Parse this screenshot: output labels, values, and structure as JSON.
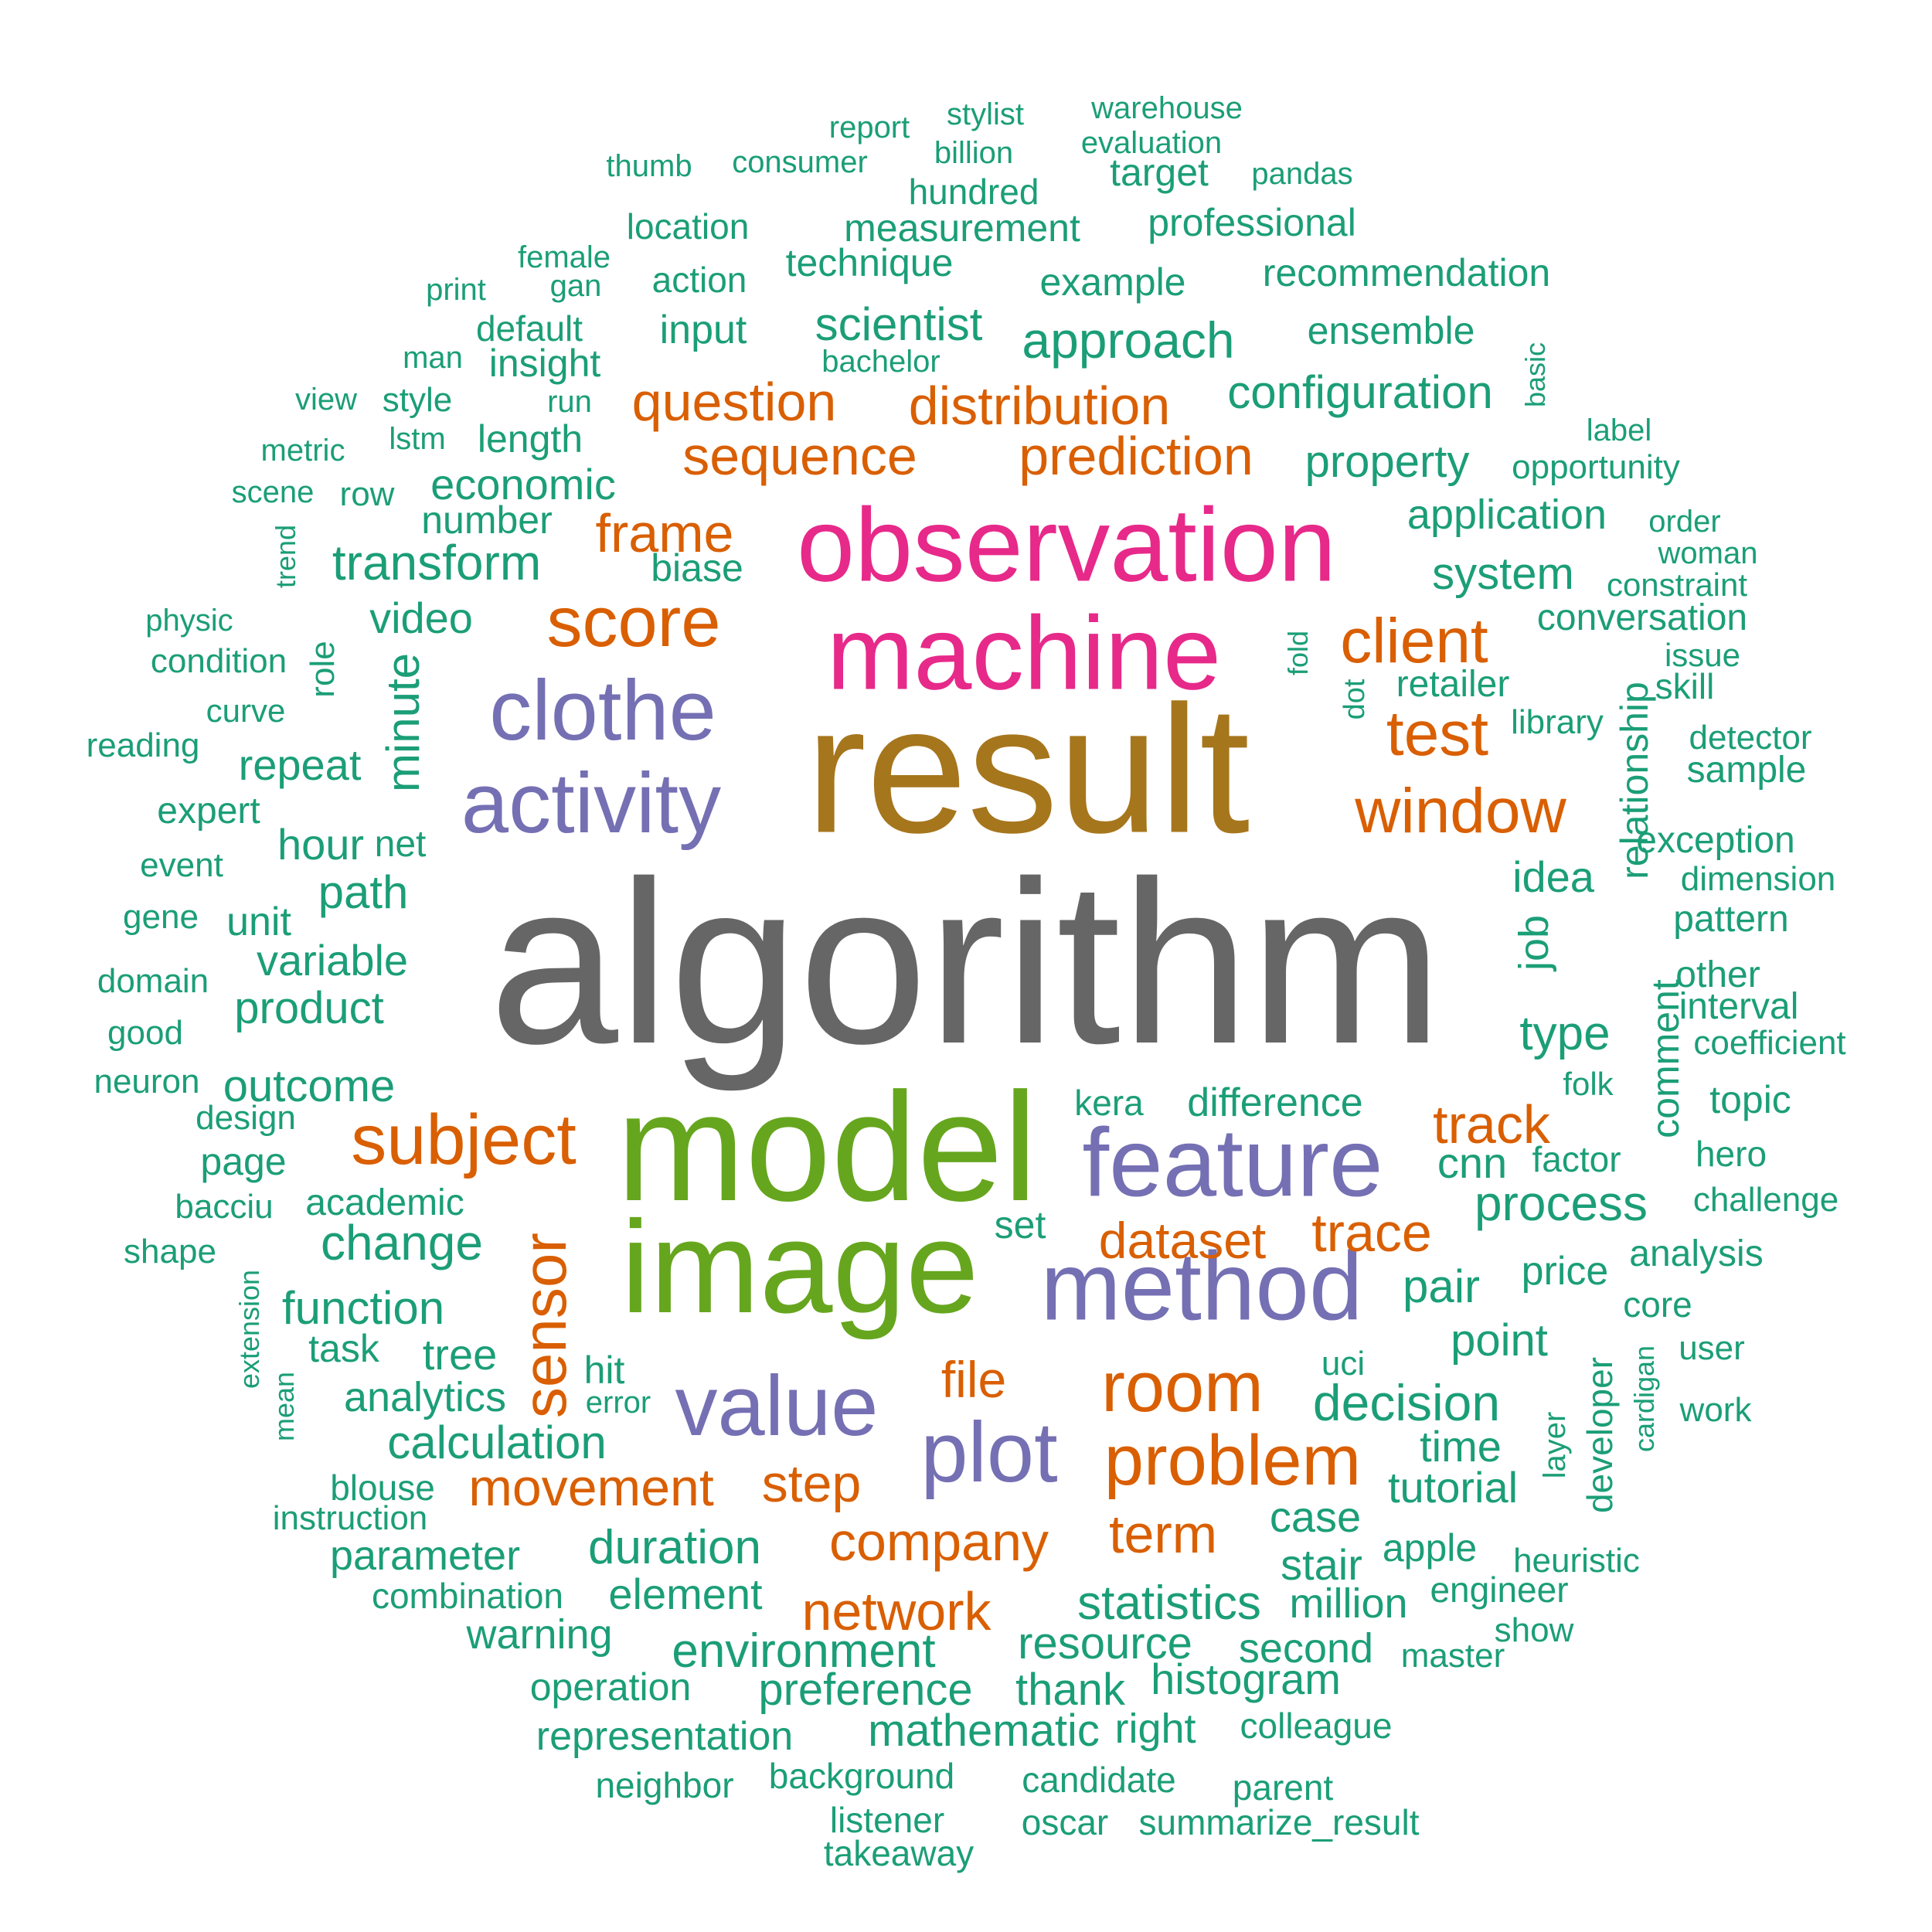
{
  "palette": {
    "gray": "#666666",
    "gold": "#a6761d",
    "magenta": "#e7298a",
    "green": "#66a61e",
    "purple": "#7570b3",
    "orange": "#d95f02",
    "teal": "#1b9e77"
  },
  "words": [
    {
      "text": "algorithm",
      "color": "gray"
    },
    {
      "text": "result",
      "color": "gold"
    },
    {
      "text": "model",
      "color": "green"
    },
    {
      "text": "image",
      "color": "green"
    },
    {
      "text": "observation",
      "color": "magenta"
    },
    {
      "text": "machine",
      "color": "magenta"
    },
    {
      "text": "feature",
      "color": "purple"
    },
    {
      "text": "method",
      "color": "purple"
    },
    {
      "text": "clothe",
      "color": "purple"
    },
    {
      "text": "activity",
      "color": "purple"
    },
    {
      "text": "value",
      "color": "purple"
    },
    {
      "text": "plot",
      "color": "purple"
    },
    {
      "text": "score",
      "color": "orange"
    },
    {
      "text": "subject",
      "color": "orange"
    },
    {
      "text": "room",
      "color": "orange"
    },
    {
      "text": "problem",
      "color": "orange"
    },
    {
      "text": "window",
      "color": "orange"
    },
    {
      "text": "client",
      "color": "orange"
    },
    {
      "text": "test",
      "color": "orange"
    },
    {
      "text": "sensor",
      "color": "orange"
    },
    {
      "text": "question",
      "color": "orange"
    },
    {
      "text": "distribution",
      "color": "orange"
    },
    {
      "text": "sequence",
      "color": "orange"
    },
    {
      "text": "prediction",
      "color": "orange"
    },
    {
      "text": "frame",
      "color": "orange"
    },
    {
      "text": "track",
      "color": "orange"
    },
    {
      "text": "trace",
      "color": "orange"
    },
    {
      "text": "dataset",
      "color": "orange"
    },
    {
      "text": "file",
      "color": "orange"
    },
    {
      "text": "movement",
      "color": "orange"
    },
    {
      "text": "step",
      "color": "orange"
    },
    {
      "text": "company",
      "color": "orange"
    },
    {
      "text": "term",
      "color": "orange"
    },
    {
      "text": "network",
      "color": "orange"
    },
    {
      "text": "report",
      "color": "teal"
    },
    {
      "text": "stylist",
      "color": "teal"
    },
    {
      "text": "warehouse",
      "color": "teal"
    },
    {
      "text": "thumb",
      "color": "teal"
    },
    {
      "text": "consumer",
      "color": "teal"
    },
    {
      "text": "billion",
      "color": "teal"
    },
    {
      "text": "evaluation",
      "color": "teal"
    },
    {
      "text": "target",
      "color": "teal"
    },
    {
      "text": "pandas",
      "color": "teal"
    },
    {
      "text": "hundred",
      "color": "teal"
    },
    {
      "text": "location",
      "color": "teal"
    },
    {
      "text": "measurement",
      "color": "teal"
    },
    {
      "text": "professional",
      "color": "teal"
    },
    {
      "text": "female",
      "color": "teal"
    },
    {
      "text": "technique",
      "color": "teal"
    },
    {
      "text": "print",
      "color": "teal"
    },
    {
      "text": "gan",
      "color": "teal"
    },
    {
      "text": "action",
      "color": "teal"
    },
    {
      "text": "example",
      "color": "teal"
    },
    {
      "text": "recommendation",
      "color": "teal"
    },
    {
      "text": "default",
      "color": "teal"
    },
    {
      "text": "input",
      "color": "teal"
    },
    {
      "text": "scientist",
      "color": "teal"
    },
    {
      "text": "approach",
      "color": "teal"
    },
    {
      "text": "ensemble",
      "color": "teal"
    },
    {
      "text": "man",
      "color": "teal"
    },
    {
      "text": "insight",
      "color": "teal"
    },
    {
      "text": "bachelor",
      "color": "teal"
    },
    {
      "text": "basic",
      "color": "teal"
    },
    {
      "text": "view",
      "color": "teal"
    },
    {
      "text": "style",
      "color": "teal"
    },
    {
      "text": "run",
      "color": "teal"
    },
    {
      "text": "configuration",
      "color": "teal"
    },
    {
      "text": "label",
      "color": "teal"
    },
    {
      "text": "metric",
      "color": "teal"
    },
    {
      "text": "lstm",
      "color": "teal"
    },
    {
      "text": "length",
      "color": "teal"
    },
    {
      "text": "property",
      "color": "teal"
    },
    {
      "text": "opportunity",
      "color": "teal"
    },
    {
      "text": "scene",
      "color": "teal"
    },
    {
      "text": "row",
      "color": "teal"
    },
    {
      "text": "economic",
      "color": "teal"
    },
    {
      "text": "number",
      "color": "teal"
    },
    {
      "text": "application",
      "color": "teal"
    },
    {
      "text": "order",
      "color": "teal"
    },
    {
      "text": "trend",
      "color": "teal"
    },
    {
      "text": "woman",
      "color": "teal"
    },
    {
      "text": "transform",
      "color": "teal"
    },
    {
      "text": "biase",
      "color": "teal"
    },
    {
      "text": "system",
      "color": "teal"
    },
    {
      "text": "constraint",
      "color": "teal"
    },
    {
      "text": "physic",
      "color": "teal"
    },
    {
      "text": "video",
      "color": "teal"
    },
    {
      "text": "conversation",
      "color": "teal"
    },
    {
      "text": "condition",
      "color": "teal"
    },
    {
      "text": "role",
      "color": "teal"
    },
    {
      "text": "fold",
      "color": "teal"
    },
    {
      "text": "issue",
      "color": "teal"
    },
    {
      "text": "retailer",
      "color": "teal"
    },
    {
      "text": "skill",
      "color": "teal"
    },
    {
      "text": "curve",
      "color": "teal"
    },
    {
      "text": "minute",
      "color": "teal"
    },
    {
      "text": "dot",
      "color": "teal"
    },
    {
      "text": "relationship",
      "color": "teal"
    },
    {
      "text": "library",
      "color": "teal"
    },
    {
      "text": "reading",
      "color": "teal"
    },
    {
      "text": "detector",
      "color": "teal"
    },
    {
      "text": "repeat",
      "color": "teal"
    },
    {
      "text": "sample",
      "color": "teal"
    },
    {
      "text": "expert",
      "color": "teal"
    },
    {
      "text": "hour",
      "color": "teal"
    },
    {
      "text": "net",
      "color": "teal"
    },
    {
      "text": "exception",
      "color": "teal"
    },
    {
      "text": "event",
      "color": "teal"
    },
    {
      "text": "path",
      "color": "teal"
    },
    {
      "text": "idea",
      "color": "teal"
    },
    {
      "text": "dimension",
      "color": "teal"
    },
    {
      "text": "gene",
      "color": "teal"
    },
    {
      "text": "unit",
      "color": "teal"
    },
    {
      "text": "job",
      "color": "teal"
    },
    {
      "text": "pattern",
      "color": "teal"
    },
    {
      "text": "variable",
      "color": "teal"
    },
    {
      "text": "domain",
      "color": "teal"
    },
    {
      "text": "other",
      "color": "teal"
    },
    {
      "text": "product",
      "color": "teal"
    },
    {
      "text": "interval",
      "color": "teal"
    },
    {
      "text": "good",
      "color": "teal"
    },
    {
      "text": "type",
      "color": "teal"
    },
    {
      "text": "comment",
      "color": "teal"
    },
    {
      "text": "coefficient",
      "color": "teal"
    },
    {
      "text": "neuron",
      "color": "teal"
    },
    {
      "text": "outcome",
      "color": "teal"
    },
    {
      "text": "folk",
      "color": "teal"
    },
    {
      "text": "kera",
      "color": "teal"
    },
    {
      "text": "difference",
      "color": "teal"
    },
    {
      "text": "topic",
      "color": "teal"
    },
    {
      "text": "design",
      "color": "teal"
    },
    {
      "text": "page",
      "color": "teal"
    },
    {
      "text": "cnn",
      "color": "teal"
    },
    {
      "text": "factor",
      "color": "teal"
    },
    {
      "text": "hero",
      "color": "teal"
    },
    {
      "text": "bacciu",
      "color": "teal"
    },
    {
      "text": "academic",
      "color": "teal"
    },
    {
      "text": "process",
      "color": "teal"
    },
    {
      "text": "challenge",
      "color": "teal"
    },
    {
      "text": "change",
      "color": "teal"
    },
    {
      "text": "set",
      "color": "teal"
    },
    {
      "text": "shape",
      "color": "teal"
    },
    {
      "text": "analysis",
      "color": "teal"
    },
    {
      "text": "extension",
      "color": "teal"
    },
    {
      "text": "function",
      "color": "teal"
    },
    {
      "text": "pair",
      "color": "teal"
    },
    {
      "text": "price",
      "color": "teal"
    },
    {
      "text": "core",
      "color": "teal"
    },
    {
      "text": "task",
      "color": "teal"
    },
    {
      "text": "tree",
      "color": "teal"
    },
    {
      "text": "uci",
      "color": "teal"
    },
    {
      "text": "point",
      "color": "teal"
    },
    {
      "text": "user",
      "color": "teal"
    },
    {
      "text": "mean",
      "color": "teal"
    },
    {
      "text": "hit",
      "color": "teal"
    },
    {
      "text": "developer",
      "color": "teal"
    },
    {
      "text": "cardigan",
      "color": "teal"
    },
    {
      "text": "analytics",
      "color": "teal"
    },
    {
      "text": "error",
      "color": "teal"
    },
    {
      "text": "decision",
      "color": "teal"
    },
    {
      "text": "work",
      "color": "teal"
    },
    {
      "text": "layer",
      "color": "teal"
    },
    {
      "text": "calculation",
      "color": "teal"
    },
    {
      "text": "time",
      "color": "teal"
    },
    {
      "text": "blouse",
      "color": "teal"
    },
    {
      "text": "tutorial",
      "color": "teal"
    },
    {
      "text": "instruction",
      "color": "teal"
    },
    {
      "text": "case",
      "color": "teal"
    },
    {
      "text": "parameter",
      "color": "teal"
    },
    {
      "text": "duration",
      "color": "teal"
    },
    {
      "text": "apple",
      "color": "teal"
    },
    {
      "text": "heuristic",
      "color": "teal"
    },
    {
      "text": "stair",
      "color": "teal"
    },
    {
      "text": "combination",
      "color": "teal"
    },
    {
      "text": "element",
      "color": "teal"
    },
    {
      "text": "statistics",
      "color": "teal"
    },
    {
      "text": "engineer",
      "color": "teal"
    },
    {
      "text": "million",
      "color": "teal"
    },
    {
      "text": "warning",
      "color": "teal"
    },
    {
      "text": "show",
      "color": "teal"
    },
    {
      "text": "resource",
      "color": "teal"
    },
    {
      "text": "environment",
      "color": "teal"
    },
    {
      "text": "second",
      "color": "teal"
    },
    {
      "text": "master",
      "color": "teal"
    },
    {
      "text": "operation",
      "color": "teal"
    },
    {
      "text": "preference",
      "color": "teal"
    },
    {
      "text": "thank",
      "color": "teal"
    },
    {
      "text": "histogram",
      "color": "teal"
    },
    {
      "text": "representation",
      "color": "teal"
    },
    {
      "text": "mathematic",
      "color": "teal"
    },
    {
      "text": "right",
      "color": "teal"
    },
    {
      "text": "colleague",
      "color": "teal"
    },
    {
      "text": "background",
      "color": "teal"
    },
    {
      "text": "neighbor",
      "color": "teal"
    },
    {
      "text": "candidate",
      "color": "teal"
    },
    {
      "text": "parent",
      "color": "teal"
    },
    {
      "text": "listener",
      "color": "teal"
    },
    {
      "text": "oscar",
      "color": "teal"
    },
    {
      "text": "summarize_result",
      "color": "teal"
    },
    {
      "text": "takeaway",
      "color": "teal"
    }
  ]
}
